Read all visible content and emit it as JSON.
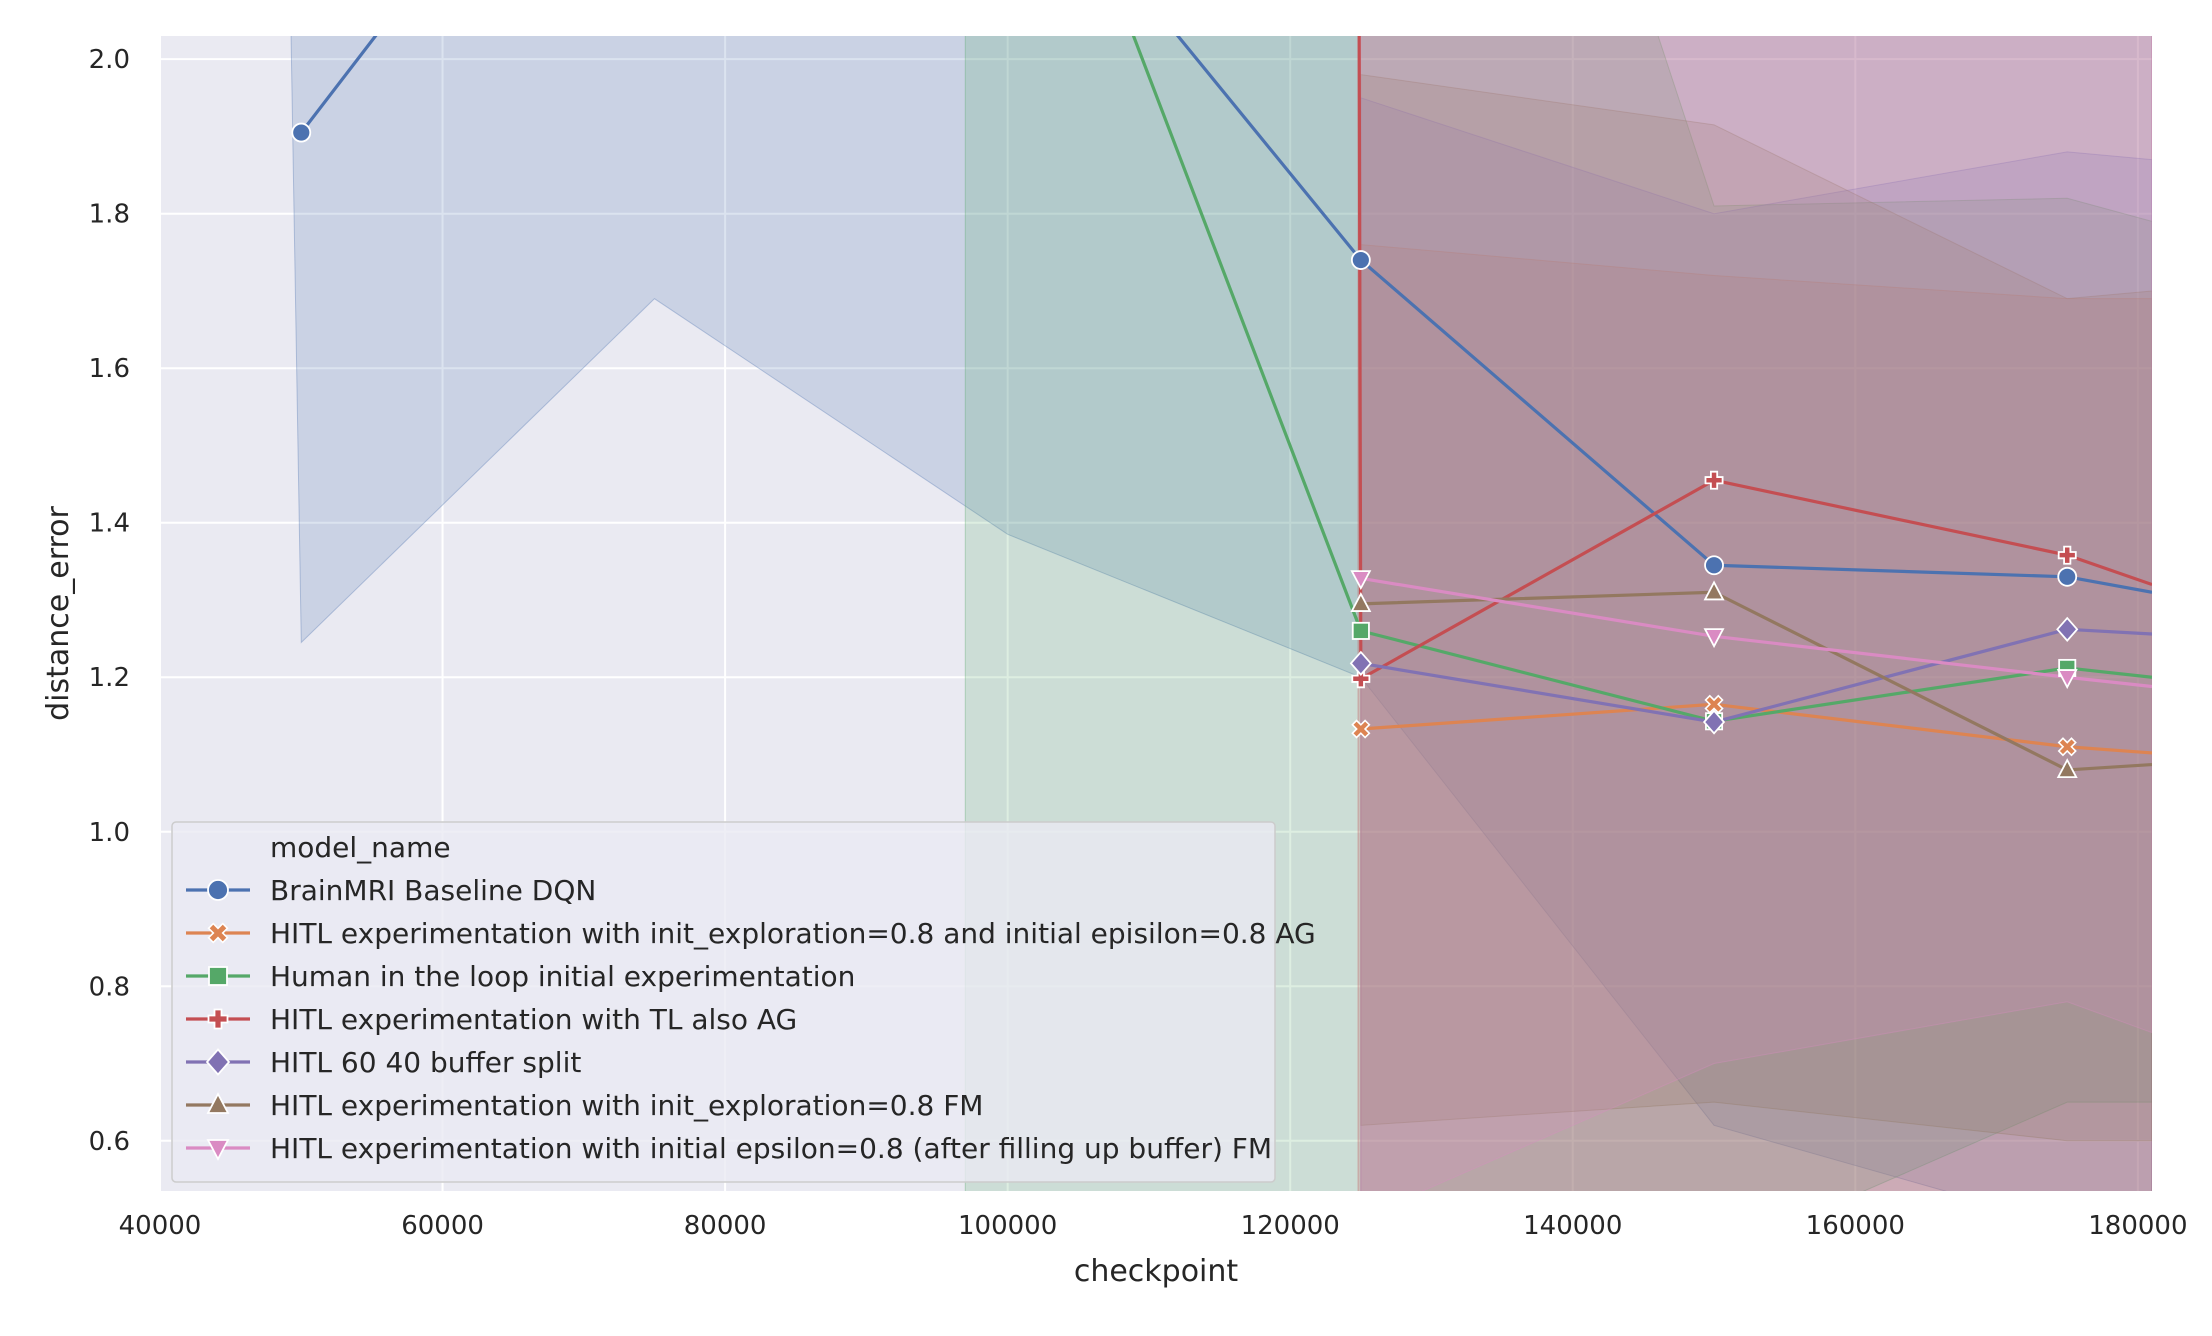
{
  "chart_data": {
    "type": "line",
    "xlabel": "checkpoint",
    "ylabel": "distance_error",
    "xlim": [
      40000,
      181000
    ],
    "ylim": [
      0.535,
      2.03
    ],
    "xticks": [
      40000,
      60000,
      80000,
      100000,
      120000,
      140000,
      160000,
      180000
    ],
    "yticks": [
      0.6,
      0.8,
      1.0,
      1.2,
      1.4,
      1.6,
      1.8,
      2.0
    ],
    "grid": true,
    "legend": {
      "title": "model_name",
      "placement": "lower-left"
    },
    "series": [
      {
        "name": "BrainMRI Baseline DQN",
        "color": "#4c72b0",
        "marker": "circle",
        "x": [
          50000,
          75000,
          100000,
          125000,
          150000,
          175000,
          181000
        ],
        "y": [
          1.905,
          2.5,
          2.3,
          1.74,
          1.345,
          1.33,
          1.31
        ],
        "band_low": [
          1.245,
          1.69,
          1.385,
          1.2,
          0.62,
          0.49,
          0.45
        ],
        "band_high": [
          4.5,
          4.0,
          3.5,
          2.6,
          2.4,
          2.3,
          2.3
        ],
        "band_start": [
          47000,
          4.5
        ]
      },
      {
        "name": "HITL experimentation with init_exploration=0.8 and initial episilon=0.8 AG",
        "color": "#dd8452",
        "marker": "x",
        "x": [
          125000,
          150000,
          175000,
          181000
        ],
        "y": [
          1.133,
          1.165,
          1.11,
          1.102
        ],
        "band_low": [
          0.48,
          0.5,
          0.48,
          0.46
        ],
        "band_high": [
          1.76,
          1.72,
          1.69,
          1.69
        ]
      },
      {
        "name": "Human in the loop initial experimentation",
        "color": "#55a868",
        "marker": "square",
        "x": [
          97000,
          125000,
          150000,
          175000,
          181000
        ],
        "y": [
          2.6,
          1.26,
          1.143,
          1.212,
          1.2
        ],
        "band_low": [
          0.45,
          0.45,
          0.45,
          0.65,
          0.65
        ],
        "band_high": [
          3.5,
          3.2,
          1.81,
          1.82,
          1.79
        ]
      },
      {
        "name": "HITL experimentation with TL also AG",
        "color": "#c44e52",
        "marker": "plus",
        "x": [
          124800,
          125000,
          150000,
          175000,
          181000
        ],
        "y": [
          2.6,
          1.198,
          1.455,
          1.358,
          1.32
        ],
        "band_low": [
          0.45,
          0.52,
          0.5,
          0.5,
          0.5
        ],
        "band_high": [
          2.6,
          2.3,
          2.2,
          2.2,
          2.2
        ]
      },
      {
        "name": "HITL 60 40 buffer split",
        "color": "#8172b3",
        "marker": "diamond",
        "x": [
          125000,
          150000,
          175000,
          181000
        ],
        "y": [
          1.218,
          1.142,
          1.262,
          1.256
        ],
        "band_low": [
          0.45,
          0.45,
          0.45,
          0.45
        ],
        "band_high": [
          1.95,
          1.8,
          1.88,
          1.87
        ]
      },
      {
        "name": "HITL experimentation with init_exploration=0.8 FM",
        "color": "#937860",
        "marker": "triangle-up",
        "x": [
          125000,
          150000,
          175000,
          181000
        ],
        "y": [
          1.295,
          1.31,
          1.08,
          1.087
        ],
        "band_low": [
          0.62,
          0.65,
          0.6,
          0.6
        ],
        "band_high": [
          1.98,
          1.915,
          1.69,
          1.7
        ]
      },
      {
        "name": "HITL experimentation with initial epsilon=0.8 (after filling up buffer) FM",
        "color": "#da8bc3",
        "marker": "triangle-down",
        "x": [
          125000,
          150000,
          175000,
          181000
        ],
        "y": [
          1.328,
          1.253,
          1.2,
          1.188
        ],
        "band_low": [
          0.5,
          0.7,
          0.78,
          0.74
        ],
        "band_high": [
          3.0,
          2.6,
          2.1,
          2.05
        ]
      }
    ]
  }
}
